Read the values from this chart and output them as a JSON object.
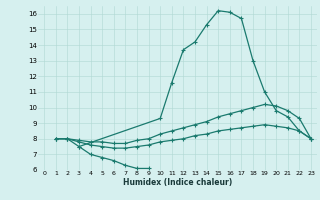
{
  "xlabel": "Humidex (Indice chaleur)",
  "bg_color": "#d6f0ef",
  "line_color": "#1a7a6e",
  "grid_color": "#b0d8d4",
  "xlim": [
    -0.5,
    23.5
  ],
  "ylim": [
    6,
    16.5
  ],
  "xticks": [
    0,
    1,
    2,
    3,
    4,
    5,
    6,
    7,
    8,
    9,
    10,
    11,
    12,
    13,
    14,
    15,
    16,
    17,
    18,
    19,
    20,
    21,
    22,
    23
  ],
  "yticks": [
    6,
    7,
    8,
    9,
    10,
    11,
    12,
    13,
    14,
    15,
    16
  ],
  "line1_x": [
    1,
    2,
    3,
    10,
    11,
    12,
    13,
    14,
    15,
    16,
    17,
    18,
    19,
    20,
    21,
    22,
    23
  ],
  "line1_y": [
    8.0,
    8.0,
    7.5,
    9.3,
    11.6,
    13.7,
    14.2,
    15.3,
    16.2,
    16.1,
    15.7,
    13.0,
    11.0,
    9.8,
    9.4,
    8.5,
    8.0
  ],
  "line2_x": [
    1,
    2,
    3,
    4,
    5,
    6,
    7,
    8,
    9,
    10,
    11,
    12,
    13,
    14,
    15,
    16,
    17,
    18,
    19,
    20,
    21,
    22,
    23
  ],
  "line2_y": [
    8.0,
    8.0,
    7.9,
    7.8,
    7.8,
    7.7,
    7.7,
    7.9,
    8.0,
    8.3,
    8.5,
    8.7,
    8.9,
    9.1,
    9.4,
    9.6,
    9.8,
    10.0,
    10.2,
    10.1,
    9.8,
    9.3,
    8.0
  ],
  "line3_x": [
    1,
    2,
    3,
    4,
    5,
    6,
    7,
    8,
    9,
    10,
    11,
    12,
    13,
    14,
    15,
    16,
    17,
    18,
    19,
    20,
    21,
    22,
    23
  ],
  "line3_y": [
    8.0,
    8.0,
    7.8,
    7.6,
    7.5,
    7.4,
    7.4,
    7.5,
    7.6,
    7.8,
    7.9,
    8.0,
    8.2,
    8.3,
    8.5,
    8.6,
    8.7,
    8.8,
    8.9,
    8.8,
    8.7,
    8.5,
    8.0
  ],
  "line4_x": [
    3,
    4,
    5,
    6,
    7,
    8,
    9
  ],
  "line4_y": [
    7.5,
    7.0,
    6.8,
    6.6,
    6.3,
    6.1,
    6.1
  ]
}
